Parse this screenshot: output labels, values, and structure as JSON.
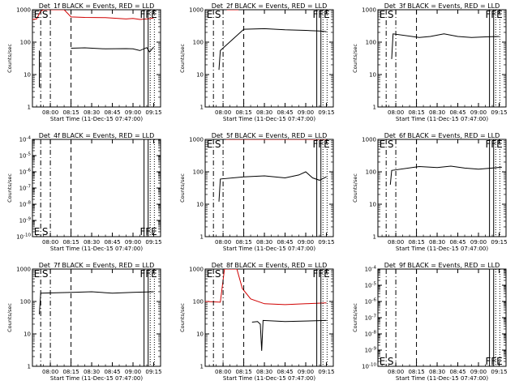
{
  "figure": {
    "background": "#ffffff",
    "black_color": "#000000",
    "red_color": "#d00000"
  },
  "chart_data": [
    {
      "type": "line",
      "title": "Det_1f BLACK = Events, RED = LLD",
      "xlabel": "Start Time (11-Dec-15 07:47:00)",
      "ylabel": "Counts/sec",
      "yscale": "log",
      "ylim": [
        1,
        1000
      ],
      "y_tick_labels": [
        "1",
        "10",
        "100",
        "1000"
      ],
      "xlim": [
        "07:47",
        "09:20"
      ],
      "x_tick_labels": [
        "08:00",
        "08:15",
        "08:30",
        "08:45",
        "09:00",
        "09:15"
      ],
      "markers": [
        "E",
        "S",
        "F",
        "F",
        "E"
      ],
      "series": [
        {
          "color": "#000000",
          "x": [
            "07:52",
            "07:52",
            "07:58",
            "08:02",
            "08:10",
            "08:15",
            "08:25",
            "08:40",
            "08:55",
            "09:00",
            "09:05",
            "09:10",
            "09:12",
            "09:15"
          ],
          "y": [
            4,
            55,
            null,
            null,
            null,
            65,
            67,
            62,
            63,
            62,
            55,
            68,
            50,
            70
          ]
        },
        {
          "color": "#d00000",
          "x": [
            "07:47",
            "07:50",
            "07:53",
            "07:55",
            "07:58",
            "08:05",
            "08:10",
            "08:15",
            "08:25",
            "08:40",
            "08:55",
            "09:00",
            "09:05",
            "09:10",
            "09:15"
          ],
          "y": [
            500,
            520,
            900,
            1000,
            1000,
            1000,
            1000,
            600,
            580,
            570,
            520,
            540,
            500,
            520,
            560
          ]
        }
      ]
    },
    {
      "type": "line",
      "title": "Det_2f BLACK = Events, RED = LLD",
      "xlabel": "Start Time (11-Dec-15 07:47:00)",
      "ylabel": "Counts/sec",
      "yscale": "log",
      "ylim": [
        1,
        1000
      ],
      "y_tick_labels": [
        "1",
        "10",
        "100",
        "1000"
      ],
      "xlim": [
        "07:47",
        "09:20"
      ],
      "x_tick_labels": [
        "08:00",
        "08:15",
        "08:30",
        "08:45",
        "09:00",
        "09:15"
      ],
      "markers": [
        "E",
        "S",
        "F",
        "F",
        "E"
      ],
      "series": [
        {
          "color": "#000000",
          "x": [
            "07:57",
            "07:58",
            "08:15",
            "08:30",
            "08:45",
            "09:00",
            "09:10",
            "09:15"
          ],
          "y": [
            14,
            55,
            250,
            260,
            240,
            230,
            220,
            210
          ]
        },
        {
          "color": "#d00000",
          "x": [
            "07:47",
            "07:58",
            "08:00",
            "08:03",
            "08:08",
            "08:11",
            "08:13",
            "08:20",
            "08:40",
            "09:00",
            "09:15"
          ],
          "y": [
            1400,
            1400,
            1500,
            1000,
            1000,
            1000,
            1500,
            1400,
            1400,
            1350,
            1400
          ]
        }
      ]
    },
    {
      "type": "line",
      "title": "Det_3f BLACK = Events, RED = LLD",
      "xlabel": "Start Time (11-Dec-15 07:47:00)",
      "ylabel": "Counts/sec",
      "yscale": "log",
      "ylim": [
        1,
        1000
      ],
      "y_tick_labels": [
        "1",
        "10",
        "100",
        "1000"
      ],
      "xlim": [
        "07:47",
        "09:20"
      ],
      "x_tick_labels": [
        "08:00",
        "08:15",
        "08:30",
        "08:45",
        "09:00",
        "09:15"
      ],
      "markers": [
        "E",
        "S",
        "F",
        "F",
        "E"
      ],
      "series": [
        {
          "color": "#000000",
          "x": [
            "07:57",
            "07:58",
            "08:17",
            "08:25",
            "08:35",
            "08:45",
            "08:55",
            "09:05",
            "09:15"
          ],
          "y": [
            30,
            180,
            140,
            150,
            180,
            150,
            140,
            145,
            150
          ]
        }
      ]
    },
    {
      "type": "line",
      "title": "Det_4f BLACK = Events, RED = LLD",
      "xlabel": "Start Time (11-Dec-15 07:47:00)",
      "ylabel": "Counts/sec",
      "yscale": "log",
      "ylim": [
        1e-10,
        0.0001
      ],
      "y_tick_labels": [
        "10^-10",
        "10^-9",
        "10^-8",
        "10^-7",
        "10^-6",
        "10^-5",
        "10^-4"
      ],
      "xlim": [
        "07:47",
        "09:20"
      ],
      "x_tick_labels": [
        "08:00",
        "08:15",
        "08:30",
        "08:45",
        "09:00",
        "09:15"
      ],
      "markers": [
        "E",
        "S",
        "F",
        "F",
        "E"
      ],
      "series": []
    },
    {
      "type": "line",
      "title": "Det_5f BLACK = Events, RED = LLD",
      "xlabel": "Start Time (11-Dec-15 07:47:00)",
      "ylabel": "Counts/sec",
      "yscale": "log",
      "ylim": [
        1,
        1000
      ],
      "y_tick_labels": [
        "1",
        "10",
        "100",
        "1000"
      ],
      "xlim": [
        "07:47",
        "09:20"
      ],
      "x_tick_labels": [
        "08:00",
        "08:15",
        "08:30",
        "08:45",
        "09:00",
        "09:15"
      ],
      "markers": [
        "E",
        "S",
        "F",
        "F",
        "E"
      ],
      "series": [
        {
          "color": "#000000",
          "x": [
            "07:57",
            "07:58",
            "08:15",
            "08:30",
            "08:45",
            "08:55",
            "09:00",
            "09:05",
            "09:10",
            "09:15"
          ],
          "y": [
            12,
            60,
            70,
            75,
            65,
            80,
            100,
            65,
            55,
            70
          ]
        },
        {
          "color": "#d00000",
          "x": [
            "08:02",
            "08:15",
            "08:30",
            "08:45",
            "09:00",
            "09:15"
          ],
          "y": [
            1000,
            1000,
            1000,
            1000,
            1000,
            1000
          ]
        }
      ]
    },
    {
      "type": "line",
      "title": "Det_6f BLACK = Events, RED = LLD",
      "xlabel": "Start Time (11-Dec-15 07:47:00)",
      "ylabel": "Counts/sec",
      "yscale": "log",
      "ylim": [
        1,
        1000
      ],
      "y_tick_labels": [
        "1",
        "10",
        "100",
        "1000"
      ],
      "xlim": [
        "07:47",
        "09:20"
      ],
      "x_tick_labels": [
        "08:00",
        "08:15",
        "08:30",
        "08:45",
        "09:00",
        "09:15"
      ],
      "markers": [
        "E",
        "S",
        "F",
        "F",
        "E"
      ],
      "series": [
        {
          "color": "#000000",
          "x": [
            "07:56",
            "07:57",
            "08:17",
            "08:30",
            "08:40",
            "08:50",
            "09:00",
            "09:10",
            "09:17"
          ],
          "y": [
            40,
            110,
            145,
            135,
            150,
            130,
            120,
            130,
            140
          ]
        }
      ]
    },
    {
      "type": "line",
      "title": "Det_7f BLACK = Events, RED = LLD",
      "xlabel": "Start Time (11-Dec-15 07:47:00)",
      "ylabel": "Counts/sec",
      "yscale": "log",
      "ylim": [
        1,
        1000
      ],
      "y_tick_labels": [
        "1",
        "10",
        "100",
        "1000"
      ],
      "xlim": [
        "07:47",
        "09:20"
      ],
      "x_tick_labels": [
        "08:00",
        "08:15",
        "08:30",
        "08:45",
        "09:00",
        "09:15"
      ],
      "markers": [
        "E",
        "S",
        "F",
        "F",
        "E"
      ],
      "series": [
        {
          "color": "#000000",
          "x": [
            "07:52",
            "07:53",
            "08:16",
            "08:30",
            "08:45",
            "09:00",
            "09:15"
          ],
          "y": [
            40,
            180,
            190,
            200,
            180,
            190,
            200
          ]
        }
      ]
    },
    {
      "type": "line",
      "title": "Det_8f BLACK = Events, RED = LLD",
      "xlabel": "Start Time (11-Dec-15 07:47:00)",
      "ylabel": "Counts/sec",
      "yscale": "log",
      "ylim": [
        1,
        1000
      ],
      "y_tick_labels": [
        "1",
        "10",
        "100",
        "1000"
      ],
      "xlim": [
        "07:47",
        "09:20"
      ],
      "x_tick_labels": [
        "08:00",
        "08:15",
        "08:30",
        "08:45",
        "09:00",
        "09:15"
      ],
      "markers": [
        "E",
        "S",
        "F",
        "F",
        "E"
      ],
      "series": [
        {
          "color": "#000000",
          "x": [
            "08:21",
            "08:25",
            "08:27",
            "08:28",
            "08:29",
            "08:45",
            "09:00",
            "09:15"
          ],
          "y": [
            23,
            24,
            20,
            3,
            26,
            24,
            25,
            26
          ]
        },
        {
          "color": "#d00000",
          "x": [
            "07:47",
            "07:58",
            "08:01",
            "08:04",
            "08:10",
            "08:14",
            "08:20",
            "08:30",
            "08:45",
            "09:00",
            "09:15"
          ],
          "y": [
            100,
            95,
            1000,
            1000,
            1000,
            250,
            120,
            85,
            80,
            85,
            90
          ]
        }
      ]
    },
    {
      "type": "line",
      "title": "Det_9f BLACK = Events, RED = LLD",
      "xlabel": "Start Time (11-Dec-15 07:47:00)",
      "ylabel": "Counts/sec",
      "yscale": "log",
      "ylim": [
        1e-10,
        0.0001
      ],
      "y_tick_labels": [
        "10^-10",
        "10^-9",
        "10^-8",
        "10^-7",
        "10^-6",
        "10^-5",
        "10^-4"
      ],
      "xlim": [
        "07:47",
        "09:20"
      ],
      "x_tick_labels": [
        "08:00",
        "08:15",
        "08:30",
        "08:45",
        "09:00",
        "09:15"
      ],
      "markers": [
        "E",
        "S",
        "F",
        "F",
        "E"
      ],
      "series": []
    }
  ]
}
